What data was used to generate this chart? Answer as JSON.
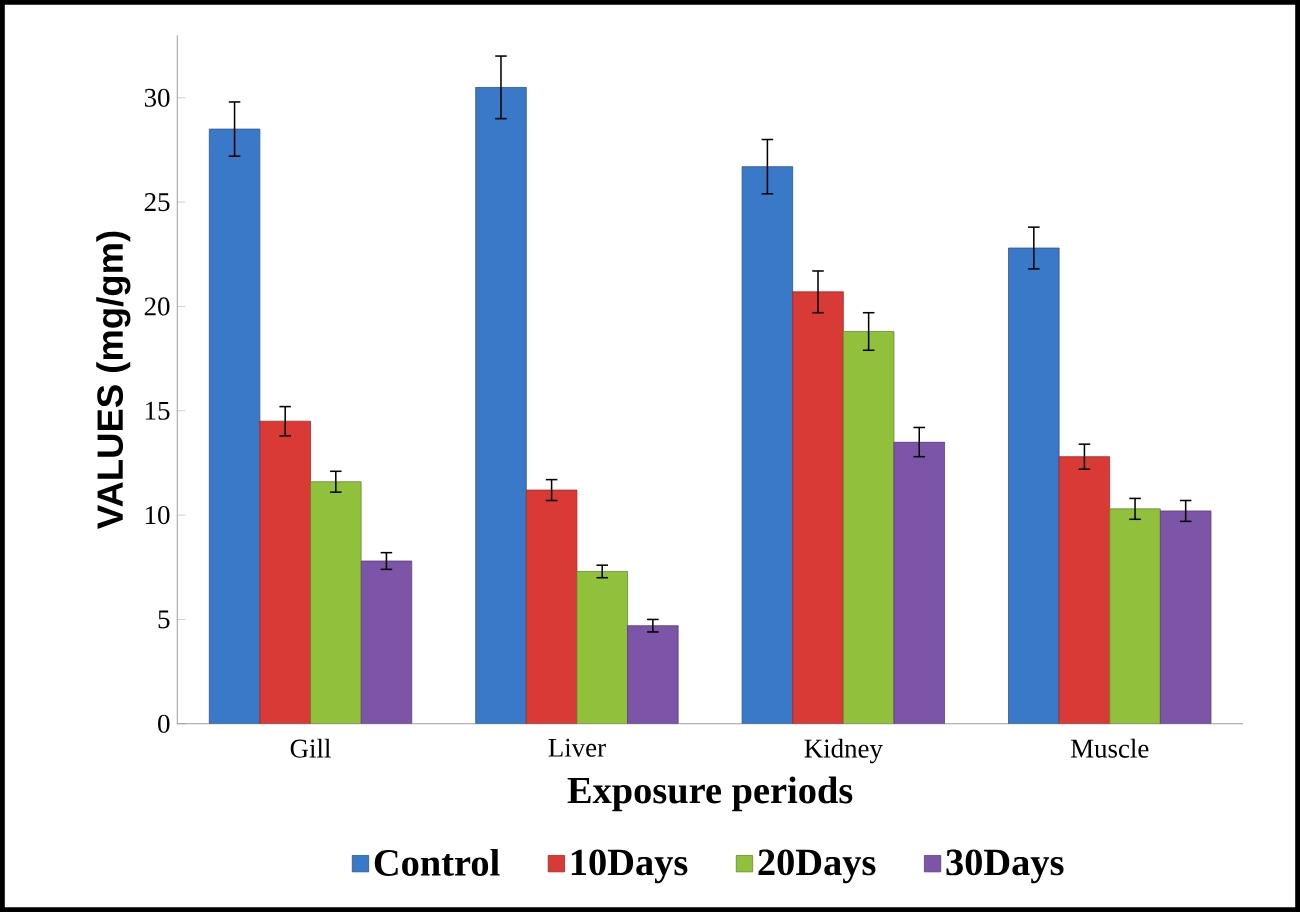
{
  "chart_data": {
    "type": "bar",
    "xlabel": "Exposure periods",
    "ylabel": "VALUES (mg/gm)",
    "categories": [
      "Gill",
      "Liver",
      "Kidney",
      "Muscle"
    ],
    "series": [
      {
        "name": "Control",
        "color": "#3a78c8",
        "values": [
          28.5,
          30.5,
          26.7,
          22.8
        ],
        "errors": [
          1.3,
          1.5,
          1.3,
          1.0
        ]
      },
      {
        "name": "10Days",
        "color": "#d93a36",
        "values": [
          14.5,
          11.2,
          20.7,
          12.8
        ],
        "errors": [
          0.7,
          0.5,
          1.0,
          0.6
        ]
      },
      {
        "name": "20Days",
        "color": "#90c03c",
        "values": [
          11.6,
          7.3,
          18.8,
          10.3
        ],
        "errors": [
          0.5,
          0.3,
          0.9,
          0.5
        ]
      },
      {
        "name": "30Days",
        "color": "#7d55a8",
        "values": [
          7.8,
          4.7,
          13.5,
          10.2
        ],
        "errors": [
          0.4,
          0.3,
          0.7,
          0.5
        ]
      }
    ],
    "ylim": [
      0,
      33
    ],
    "yticks": [
      0,
      5,
      10,
      15,
      20,
      25,
      30
    ],
    "grid": false,
    "legend": "bottom"
  }
}
